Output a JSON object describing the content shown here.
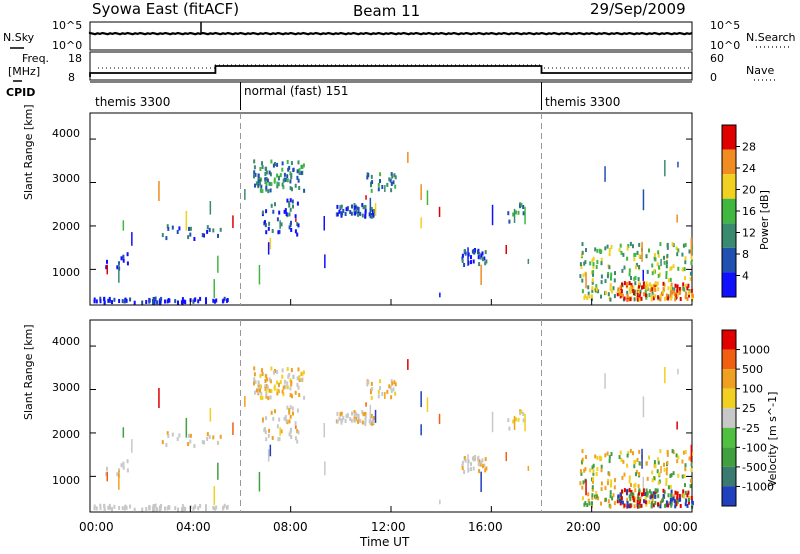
{
  "header": {
    "station": "Syowa East (fitACF)",
    "beam": "Beam 11",
    "date": "29/Sep/2009"
  },
  "top_panel": {
    "left_label": "N.Sky",
    "left_ticks": [
      "10^5",
      "10^0"
    ],
    "right_label": "N.Search",
    "right_ticks": [
      "10^5",
      "10^0"
    ]
  },
  "freq_panel": {
    "left_label_1": "Freq.",
    "left_label_2": "[MHz]",
    "left_ticks": [
      "18",
      "8"
    ],
    "right_label": "Nave",
    "right_ticks": [
      "60",
      "0"
    ]
  },
  "cpid": {
    "label": "CPID",
    "segments": [
      {
        "name": "themis 3300",
        "start": 0,
        "end": 6
      },
      {
        "name": "normal (fast) 151",
        "start": 6,
        "end": 18
      },
      {
        "name": "themis 3300",
        "start": 18,
        "end": 24
      }
    ]
  },
  "chart_data": [
    {
      "type": "heatmap",
      "title": "Power",
      "ylabel": "Slant Range [km]",
      "xlabel": "Time UT",
      "xlim": [
        0,
        24
      ],
      "ylim": [
        180,
        4600
      ],
      "yticks": [
        1000,
        2000,
        3000,
        4000
      ],
      "colorbar": {
        "label": "Power [dB]",
        "ticks": [
          "4",
          "8",
          "12",
          "16",
          "20",
          "24",
          "28"
        ],
        "colors": [
          "#1010ff",
          "#2050b0",
          "#3a8a70",
          "#40b840",
          "#f0d020",
          "#f08c20",
          "#e00000"
        ]
      }
    },
    {
      "type": "heatmap",
      "title": "Velocity",
      "ylabel": "Slant Range [km]",
      "xlabel": "Time UT",
      "xlim": [
        0,
        24
      ],
      "ylim": [
        180,
        4600
      ],
      "yticks": [
        1000,
        2000,
        3000,
        4000
      ],
      "colorbar": {
        "label": "Velocity [m s^-1]",
        "ticks": [
          "1000",
          "500",
          "100",
          "25",
          "-25",
          "-100",
          "-500",
          "-1000"
        ],
        "colors": [
          "#2040c0",
          "#3a7a70",
          "#40a040",
          "#50c040",
          "#c8c8c8",
          "#f0d020",
          "#f0a020",
          "#f06010",
          "#e00000"
        ]
      }
    }
  ],
  "time_axis": {
    "ticks": [
      "00:00",
      "04:00",
      "08:00",
      "12:00",
      "16:00",
      "20:00",
      "00:00"
    ],
    "label": "Time UT"
  }
}
